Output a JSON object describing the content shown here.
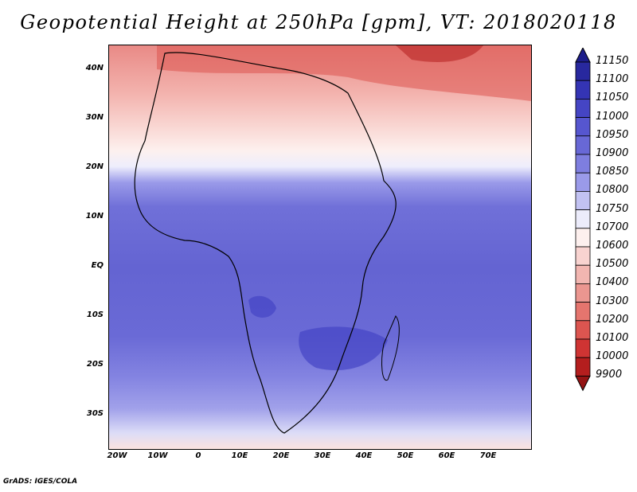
{
  "title": "Geopotential Height at 250hPa [gpm], VT: 2018020118",
  "footer": "GrADS: IGES/COLA",
  "map": {
    "region": "Africa",
    "lat_range": [
      -37,
      45
    ],
    "lon_range": [
      -22,
      80
    ],
    "lat_ticks": [
      "40N",
      "30N",
      "20N",
      "10N",
      "EQ",
      "10S",
      "20S",
      "30S"
    ],
    "lon_ticks": [
      "20W",
      "10W",
      "0",
      "10E",
      "20E",
      "30E",
      "40E",
      "50E",
      "60E",
      "70E"
    ]
  },
  "legend": {
    "levels": [
      "11150",
      "11100",
      "11050",
      "11000",
      "10950",
      "10900",
      "10850",
      "10800",
      "10750",
      "10700",
      "10600",
      "10500",
      "10400",
      "10300",
      "10200",
      "10100",
      "10000",
      "9900"
    ],
    "colors": [
      "#1d1d8a",
      "#28289e",
      "#3434b4",
      "#4545c4",
      "#5656cf",
      "#6868d6",
      "#7e7edf",
      "#9a9ae9",
      "#c2c2f2",
      "#ececfb",
      "#fdf0ee",
      "#f8d3d0",
      "#f2b6b1",
      "#eb9690",
      "#e5756e",
      "#dc5550",
      "#cf3433",
      "#b41e1e",
      "#941414"
    ]
  }
}
